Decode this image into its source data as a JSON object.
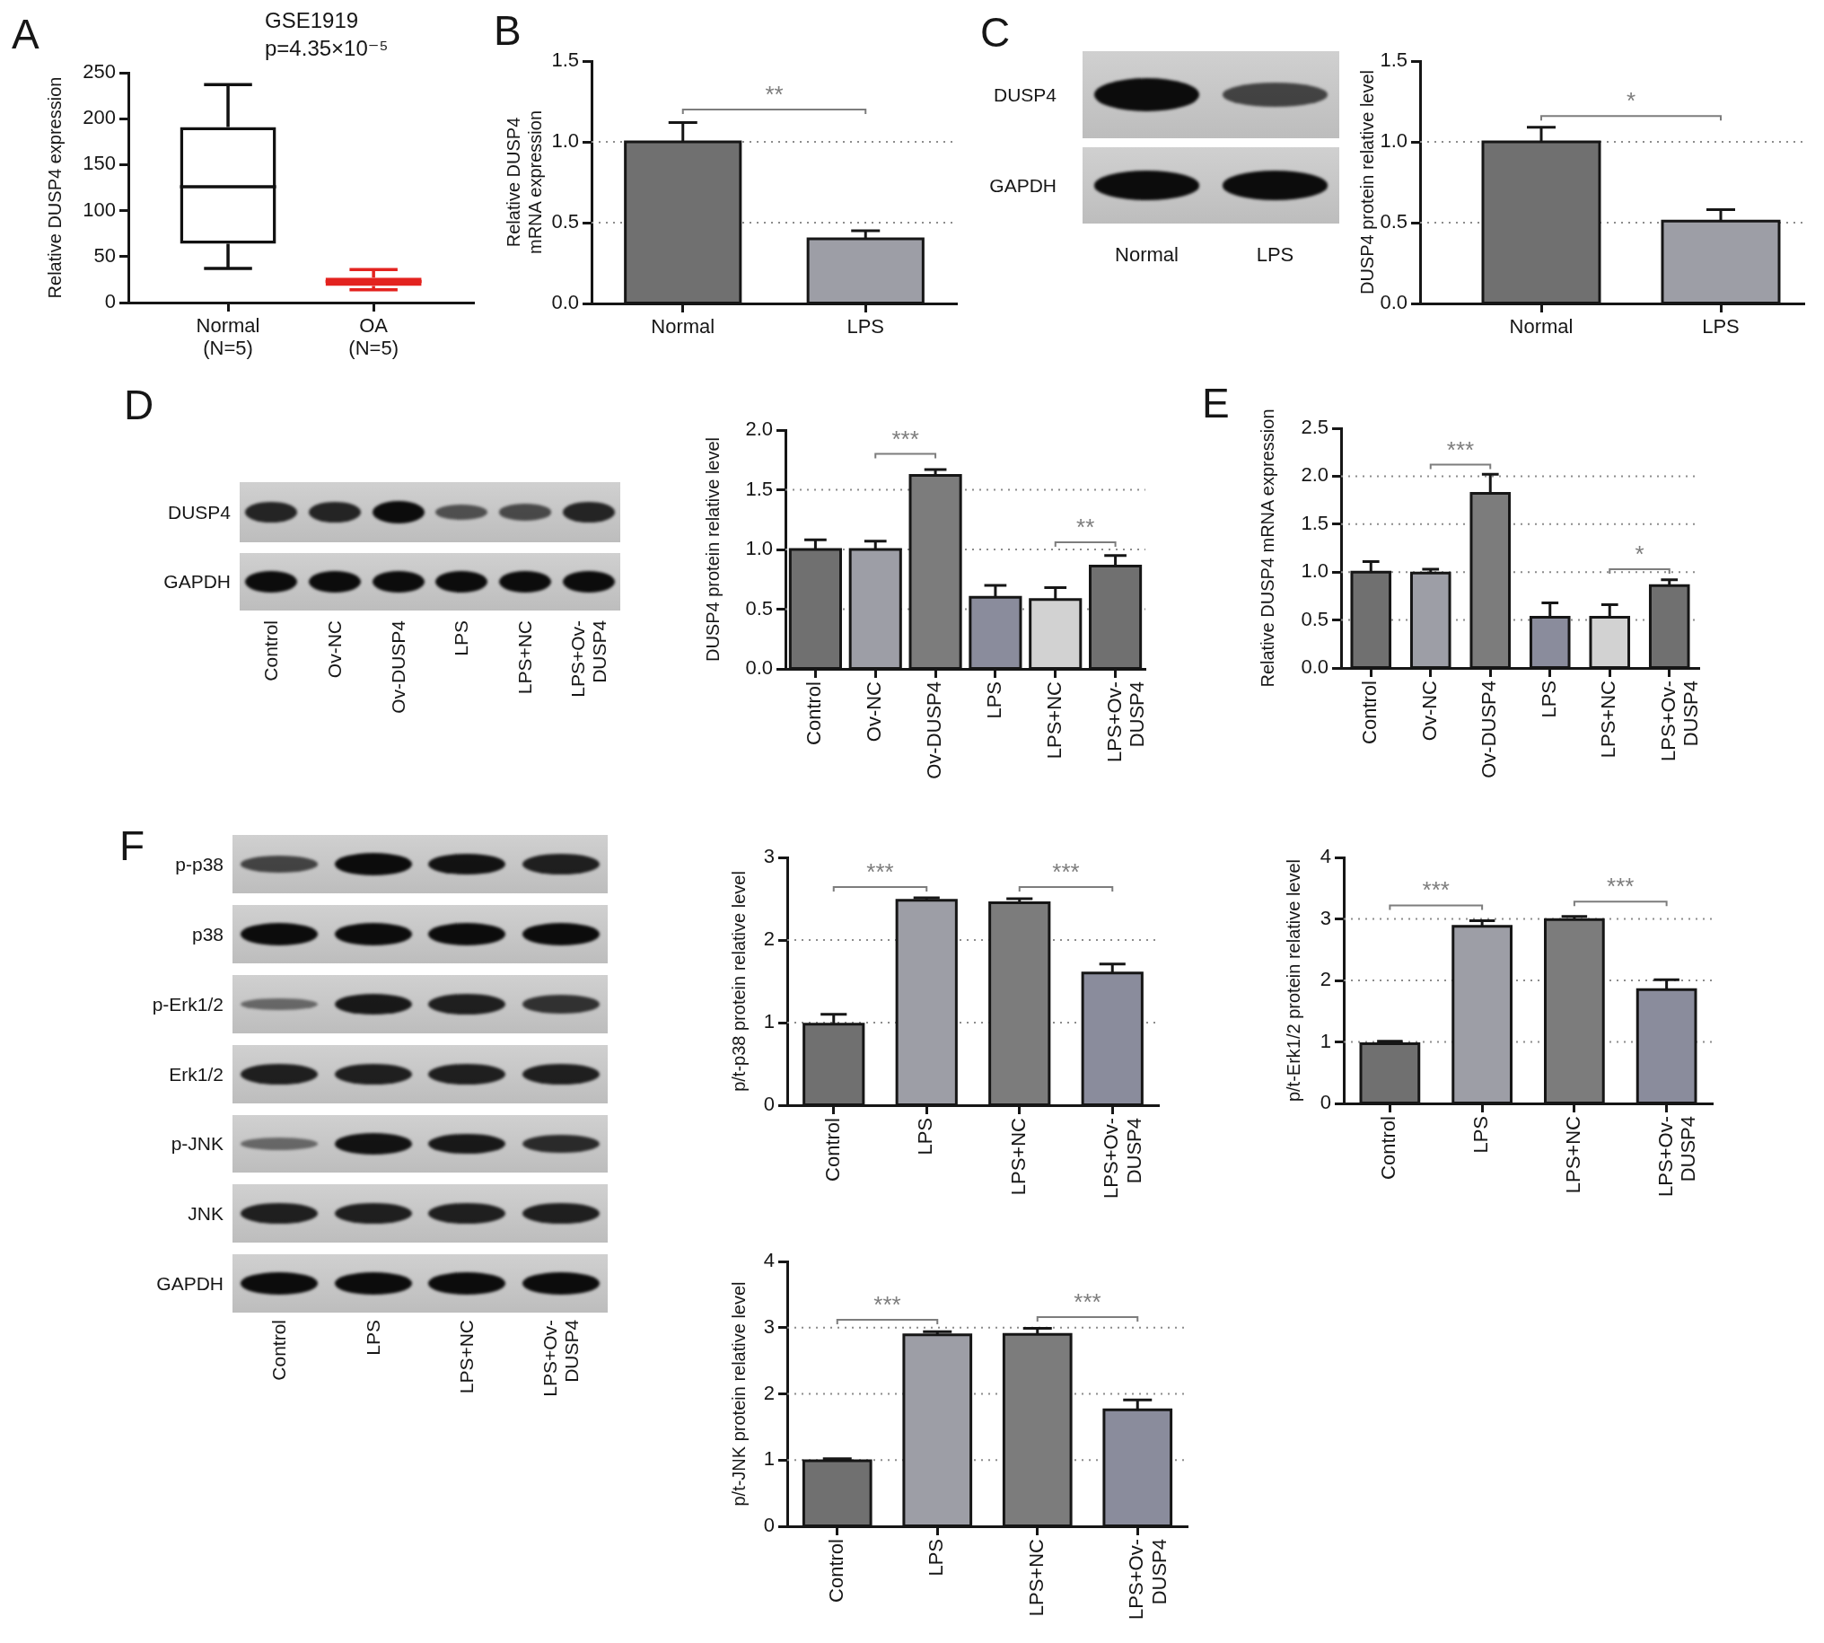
{
  "chart_data": [
    {
      "type": "box",
      "title": "GSE1919",
      "subtitle": "p=4.35×10⁻⁵",
      "ylabel": "Relative DUSP4 expression",
      "categories": [
        "Normal (N=5)",
        "OA (N=5)"
      ],
      "boxes": [
        {
          "low": 37,
          "q1": 64,
          "median": 126,
          "q3": 191,
          "high": 237
        },
        {
          "low": 14,
          "q1": 18,
          "median": 23,
          "q3": 27,
          "high": 36
        }
      ],
      "colors": [
        "#111111",
        "#e3231f"
      ],
      "ylim": [
        0,
        250
      ],
      "yticks": [
        0,
        50,
        100,
        150,
        200,
        250
      ],
      "annotations": [
        "A"
      ]
    },
    {
      "type": "bar",
      "ylabel": "Relative DUSP4 mRNA expression",
      "categories": [
        "Normal",
        "LPS"
      ],
      "values": [
        1.0,
        0.4
      ],
      "errors": [
        0.12,
        0.05
      ],
      "colors": [
        "#707070",
        "#9d9ea6"
      ],
      "ylim": [
        0,
        1.5
      ],
      "yticks": [
        {
          "value": 0,
          "label": "0.0"
        },
        0.5,
        {
          "value": 1,
          "label": "1.0"
        },
        1.5
      ],
      "ref_lines": [
        {
          "axis": "y",
          "value": 0.5,
          "line_style": "dotted",
          "color": "#8c8c8c"
        },
        {
          "axis": "y",
          "value": 1,
          "line_style": "dotted",
          "color": "#8c8c8c"
        }
      ],
      "annotations": [
        "B",
        "**"
      ]
    },
    {
      "type": "other",
      "categories": [
        "Normal",
        "LPS"
      ],
      "y_categories": [
        "DUSP4",
        "GAPDH"
      ],
      "annotations": [
        "C"
      ]
    },
    {
      "type": "bar",
      "ylabel": "DUSP4 protein relative level",
      "categories": [
        "Normal",
        "LPS"
      ],
      "values": [
        1.0,
        0.51
      ],
      "errors": [
        0.09,
        0.07
      ],
      "colors": [
        "#707070",
        "#9d9ea6"
      ],
      "ylim": [
        0,
        1.5
      ],
      "yticks": [
        {
          "value": 0,
          "label": "0.0"
        },
        0.5,
        {
          "value": 1,
          "label": "1.0"
        },
        1.5
      ],
      "ref_lines": [
        {
          "axis": "y",
          "value": 0.5,
          "line_style": "dotted",
          "color": "#8c8c8c"
        },
        {
          "axis": "y",
          "value": 1,
          "line_style": "dotted",
          "color": "#8c8c8c"
        }
      ],
      "annotations": [
        "*"
      ]
    },
    {
      "type": "other",
      "categories": [
        "Control",
        "Ov-NC",
        "Ov-DUSP4",
        "LPS",
        "LPS+NC",
        "LPS+Ov-DUSP4"
      ],
      "y_categories": [
        "DUSP4",
        "GAPDH"
      ],
      "annotations": [
        "D"
      ]
    },
    {
      "type": "bar",
      "ylabel": "DUSP4 protein relative level",
      "categories": [
        "Control",
        "Ov-NC",
        "Ov-DUSP4",
        "LPS",
        "LPS+NC",
        "LPS+Ov-DUSP4"
      ],
      "values": [
        1.0,
        1.0,
        1.62,
        0.6,
        0.58,
        0.86
      ],
      "errors": [
        0.08,
        0.07,
        0.05,
        0.1,
        0.1,
        0.09
      ],
      "colors": [
        "#707070",
        "#9d9ea6",
        "#7c7c7c",
        "#8a8c9c",
        "#d2d2d2",
        "#707070"
      ],
      "ylim": [
        0,
        2
      ],
      "yticks": [
        {
          "value": 0,
          "label": "0.0"
        },
        0.5,
        {
          "value": 1,
          "label": "1.0"
        },
        1.5,
        {
          "value": 2,
          "label": "2.0"
        }
      ],
      "ref_lines": [
        {
          "axis": "y",
          "value": 0.5,
          "line_style": "dotted",
          "color": "#8c8c8c"
        },
        {
          "axis": "y",
          "value": 1,
          "line_style": "dotted",
          "color": "#8c8c8c"
        },
        {
          "axis": "y",
          "value": 1.5,
          "line_style": "dotted",
          "color": "#8c8c8c"
        }
      ],
      "annotations": [
        "***",
        "**"
      ]
    },
    {
      "type": "bar",
      "ylabel": "Relative DUSP4 mRNA expression",
      "categories": [
        "Control",
        "Ov-NC",
        "Ov-DUSP4",
        "LPS",
        "LPS+NC",
        "LPS+Ov-DUSP4"
      ],
      "values": [
        1.0,
        0.99,
        1.82,
        0.53,
        0.53,
        0.86
      ],
      "errors": [
        0.11,
        0.04,
        0.2,
        0.15,
        0.13,
        0.06
      ],
      "colors": [
        "#707070",
        "#9d9ea6",
        "#7c7c7c",
        "#8a8c9c",
        "#d2d2d2",
        "#707070"
      ],
      "ylim": [
        0,
        2.5
      ],
      "yticks": [
        {
          "value": 0,
          "label": "0.0"
        },
        0.5,
        {
          "value": 1,
          "label": "1.0"
        },
        1.5,
        {
          "value": 2,
          "label": "2.0"
        },
        2.5
      ],
      "ref_lines": [
        {
          "axis": "y",
          "value": 0.5,
          "line_style": "dotted",
          "color": "#8c8c8c"
        },
        {
          "axis": "y",
          "value": 1,
          "line_style": "dotted",
          "color": "#8c8c8c"
        },
        {
          "axis": "y",
          "value": 1.5,
          "line_style": "dotted",
          "color": "#8c8c8c"
        },
        {
          "axis": "y",
          "value": 2,
          "line_style": "dotted",
          "color": "#8c8c8c"
        }
      ],
      "annotations": [
        "E",
        "***",
        "*"
      ]
    },
    {
      "type": "other",
      "categories": [
        "Control",
        "LPS",
        "LPS+NC",
        "LPS+Ov-DUSP4"
      ],
      "y_categories": [
        "p-p38",
        "p38",
        "p-Erk1/2",
        "Erk1/2",
        "p-JNK",
        "JNK",
        "GAPDH"
      ],
      "annotations": [
        "F"
      ]
    },
    {
      "type": "bar",
      "ylabel": "p/t-p38 protein relative level",
      "categories": [
        "Control",
        "LPS",
        "LPS+NC",
        "LPS+Ov-DUSP4"
      ],
      "values": [
        0.98,
        2.48,
        2.45,
        1.6
      ],
      "errors": [
        0.12,
        0.03,
        0.05,
        0.11
      ],
      "colors": [
        "#707070",
        "#9d9ea6",
        "#7c7c7c",
        "#8a8c9c"
      ],
      "ylim": [
        0,
        3
      ],
      "yticks": [
        0,
        1,
        2,
        3
      ],
      "ref_lines": [
        {
          "axis": "y",
          "value": 1,
          "line_style": "dotted",
          "color": "#8c8c8c"
        },
        {
          "axis": "y",
          "value": 2,
          "line_style": "dotted",
          "color": "#8c8c8c"
        }
      ],
      "annotations": [
        "***",
        "***"
      ]
    },
    {
      "type": "bar",
      "ylabel": "p/t-Erk1/2 protein relative level",
      "categories": [
        "Control",
        "LPS",
        "LPS+NC",
        "LPS+Ov-DUSP4"
      ],
      "values": [
        0.97,
        2.88,
        2.99,
        1.85
      ],
      "errors": [
        0.04,
        0.09,
        0.05,
        0.16
      ],
      "colors": [
        "#707070",
        "#9d9ea6",
        "#7c7c7c",
        "#8a8c9c"
      ],
      "ylim": [
        0,
        4
      ],
      "yticks": [
        0,
        1,
        2,
        3,
        4
      ],
      "ref_lines": [
        {
          "axis": "y",
          "value": 1,
          "line_style": "dotted",
          "color": "#8c8c8c"
        },
        {
          "axis": "y",
          "value": 2,
          "line_style": "dotted",
          "color": "#8c8c8c"
        },
        {
          "axis": "y",
          "value": 3,
          "line_style": "dotted",
          "color": "#8c8c8c"
        }
      ],
      "annotations": [
        "***",
        "***"
      ]
    },
    {
      "type": "bar",
      "ylabel": "p/t-JNK protein relative level",
      "categories": [
        "Control",
        "LPS",
        "LPS+NC",
        "LPS+Ov-DUSP4"
      ],
      "values": [
        0.99,
        2.89,
        2.9,
        1.76
      ],
      "errors": [
        0.03,
        0.05,
        0.09,
        0.15
      ],
      "colors": [
        "#707070",
        "#9d9ea6",
        "#7c7c7c",
        "#8a8c9c"
      ],
      "ylim": [
        0,
        4
      ],
      "yticks": [
        0,
        1,
        2,
        3,
        4
      ],
      "ref_lines": [
        {
          "axis": "y",
          "value": 1,
          "line_style": "dotted",
          "color": "#8c8c8c"
        },
        {
          "axis": "y",
          "value": 2,
          "line_style": "dotted",
          "color": "#8c8c8c"
        },
        {
          "axis": "y",
          "value": 3,
          "line_style": "dotted",
          "color": "#8c8c8c"
        }
      ],
      "annotations": [
        "***",
        "***"
      ]
    }
  ]
}
